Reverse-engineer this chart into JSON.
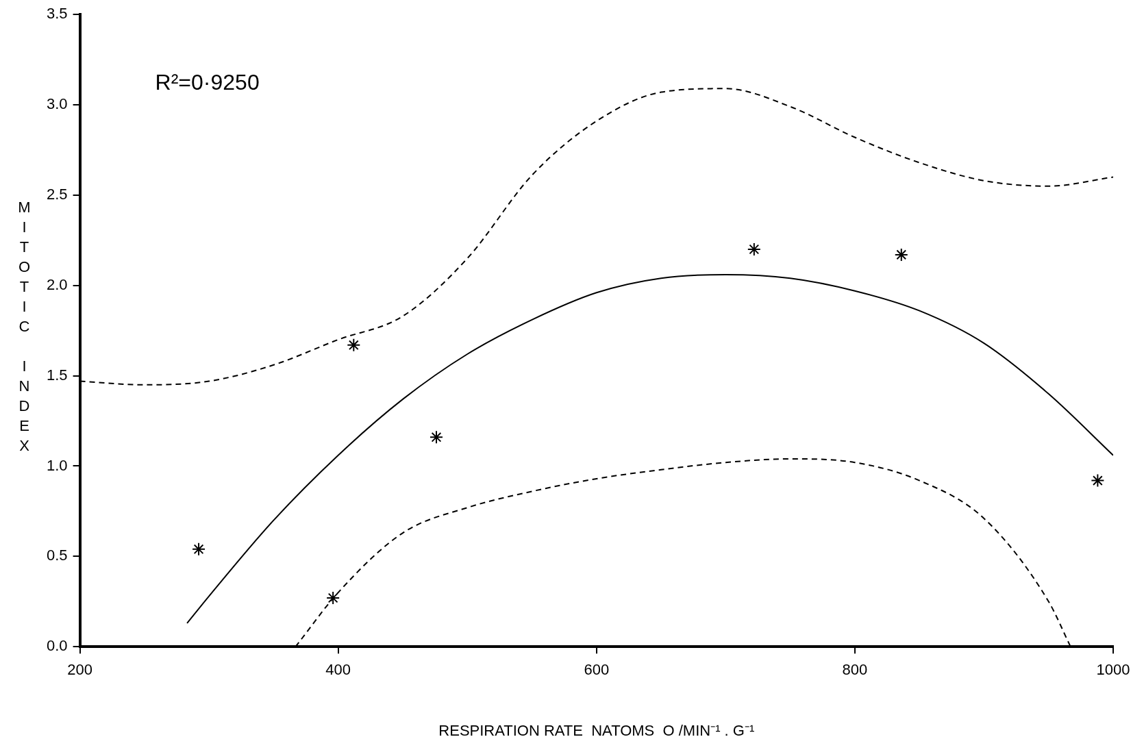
{
  "chart_data": {
    "type": "scatter",
    "xlabel": "RESPIRATION RATE  NATOMS  O /MIN⁻¹ . G⁻¹",
    "ylabel": "MITOTIC INDEX",
    "annotations": [
      "R²=0·9250"
    ],
    "xlim": [
      200,
      1000
    ],
    "xticks": [
      200,
      400,
      600,
      800,
      1000
    ],
    "ylim": [
      0,
      3.5
    ],
    "yticks": [
      {
        "value": 0,
        "label": "0.0"
      },
      {
        "value": 0.5,
        "label": "0.5"
      },
      {
        "value": 1,
        "label": "1.0"
      },
      {
        "value": 1.5,
        "label": "1.5"
      },
      {
        "value": 2,
        "label": "2.0"
      },
      {
        "value": 2.5,
        "label": "2.5"
      },
      {
        "value": 3,
        "label": "3.0"
      },
      {
        "value": 3.5,
        "label": "3.5"
      }
    ],
    "grid": false,
    "legend": false,
    "series": [
      {
        "type": "scatter",
        "marker": "cross",
        "color": "#000000",
        "x": [
          292,
          396,
          412,
          476,
          722,
          836,
          988
        ],
        "values": [
          0.54,
          0.27,
          1.67,
          1.16,
          2.2,
          2.17,
          0.92
        ]
      },
      {
        "type": "line",
        "line_style": "solid",
        "color": "#000000",
        "x": [
          283,
          300,
          350,
          400,
          450,
          500,
          550,
          600,
          650,
          700,
          750,
          800,
          850,
          900,
          950,
          1000
        ],
        "values": [
          0.13,
          0.28,
          0.7,
          1.06,
          1.37,
          1.62,
          1.81,
          1.96,
          2.04,
          2.06,
          2.04,
          1.97,
          1.86,
          1.68,
          1.4,
          1.06
        ]
      },
      {
        "type": "line",
        "line_style": "dashed",
        "color": "#000000",
        "x": [
          200,
          250,
          300,
          350,
          400,
          450,
          500,
          550,
          600,
          650,
          700,
          750,
          800,
          850,
          900,
          950,
          1000
        ],
        "values": [
          1.47,
          1.45,
          1.47,
          1.56,
          1.7,
          1.83,
          2.15,
          2.61,
          2.91,
          3.07,
          3.09,
          2.99,
          2.82,
          2.68,
          2.58,
          2.55,
          2.6
        ]
      },
      {
        "type": "line",
        "line_style": "dashed",
        "color": "#000000",
        "x": [
          367,
          400,
          450,
          500,
          550,
          600,
          650,
          700,
          750,
          800,
          850,
          900,
          950,
          967
        ],
        "values": [
          0,
          0.3,
          0.63,
          0.77,
          0.86,
          0.93,
          0.98,
          1.02,
          1.04,
          1.02,
          0.92,
          0.71,
          0.25,
          0
        ]
      }
    ]
  }
}
